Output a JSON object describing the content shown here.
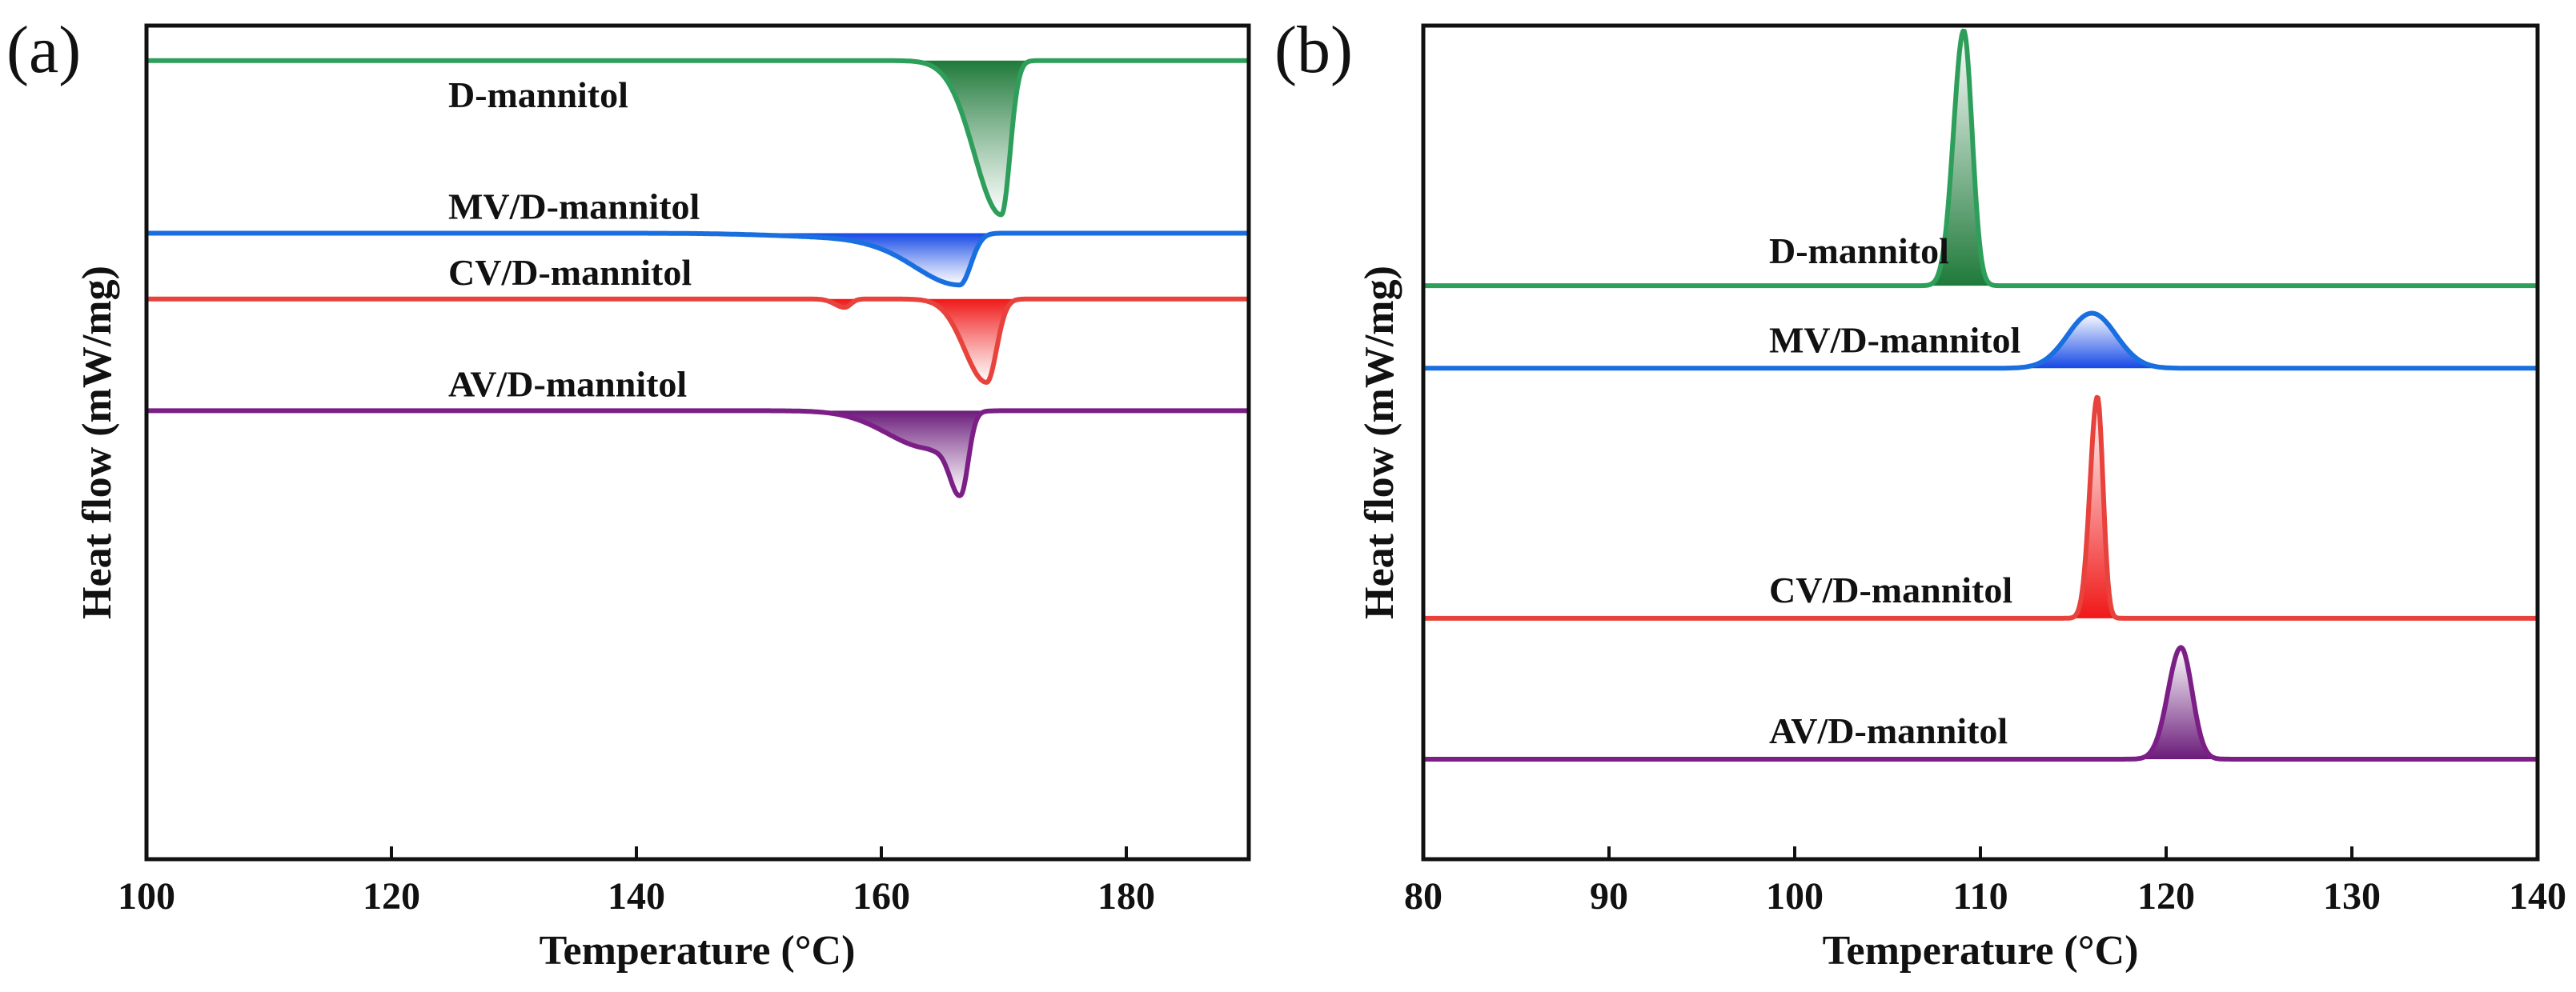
{
  "chart_data": [
    {
      "panel": "(a)",
      "type": "line",
      "xlabel": "Temperature (°C)",
      "ylabel": "Heat flow (mW/mg)",
      "xlim": [
        100,
        190
      ],
      "xticks": [
        100,
        120,
        140,
        160,
        180
      ],
      "ylim": [
        -5,
        5
      ],
      "y_ticks_shown": false,
      "direction": "endothermic peaks pointing down",
      "series": [
        {
          "name": "D-mannitol",
          "color": "#2e9e5b",
          "fill": "#1f7a3a",
          "baseline": 4.58,
          "peaks": [
            {
              "center": 169.8,
              "depth": 1.85,
              "width_left": 2.2,
              "width_right": 0.7
            }
          ]
        },
        {
          "name": "MV/D-mannitol",
          "color": "#1a6fe0",
          "fill": "#1448e6",
          "baseline": 2.51,
          "peaks": [
            {
              "center": 166.4,
              "depth": 0.62,
              "width_left": 3.8,
              "width_right": 0.9
            },
            {
              "center": 158.0,
              "depth": 0.05,
              "width_left": 6.0,
              "width_right": 3.0
            }
          ]
        },
        {
          "name": "CV/D-mannitol",
          "color": "#e8423c",
          "fill": "#f01818",
          "baseline": 1.72,
          "peaks": [
            {
              "center": 168.6,
              "depth": 1.0,
              "width_left": 1.8,
              "width_right": 0.8
            },
            {
              "center": 157.0,
              "depth": 0.1,
              "width_left": 0.8,
              "width_right": 0.5
            }
          ]
        },
        {
          "name": "AV/D-mannitol",
          "color": "#7b1f86",
          "fill": "#6a1b7a",
          "baseline": 0.38,
          "peaks": [
            {
              "center": 166.5,
              "depth": 0.9,
              "width_left": 0.9,
              "width_right": 0.6
            },
            {
              "center": 164.0,
              "depth": 0.45,
              "width_left": 3.5,
              "width_right": 1.5
            }
          ]
        }
      ]
    },
    {
      "panel": "(b)",
      "type": "line",
      "xlabel": "Temperature (°C)",
      "ylabel": "Heat flow (mW/mg)",
      "xlim": [
        80,
        140
      ],
      "xticks": [
        80,
        90,
        100,
        110,
        120,
        130,
        140
      ],
      "ylim": [
        -5,
        5
      ],
      "y_ticks_shown": false,
      "direction": "exothermic peaks pointing up",
      "series": [
        {
          "name": "D-mannitol",
          "color": "#2e9e5b",
          "fill": "#1f7a3a",
          "baseline": 1.88,
          "peaks": [
            {
              "center": 109.1,
              "height": 3.06,
              "width_left": 0.55,
              "width_right": 0.45
            }
          ]
        },
        {
          "name": "MV/D-mannitol",
          "color": "#1a6fe0",
          "fill": "#1448e6",
          "baseline": 0.89,
          "peaks": [
            {
              "center": 116.0,
              "height": 0.66,
              "width_left": 1.3,
              "width_right": 1.3
            }
          ]
        },
        {
          "name": "CV/D-mannitol",
          "color": "#e8423c",
          "fill": "#f01818",
          "baseline": -2.11,
          "peaks": [
            {
              "center": 116.3,
              "height": 2.66,
              "width_left": 0.4,
              "width_right": 0.3
            }
          ]
        },
        {
          "name": "AV/D-mannitol",
          "color": "#7b1f86",
          "fill": "#6a1b7a",
          "baseline": -3.8,
          "peaks": [
            {
              "center": 120.8,
              "height": 1.34,
              "width_left": 0.7,
              "width_right": 0.6
            }
          ]
        }
      ]
    }
  ]
}
